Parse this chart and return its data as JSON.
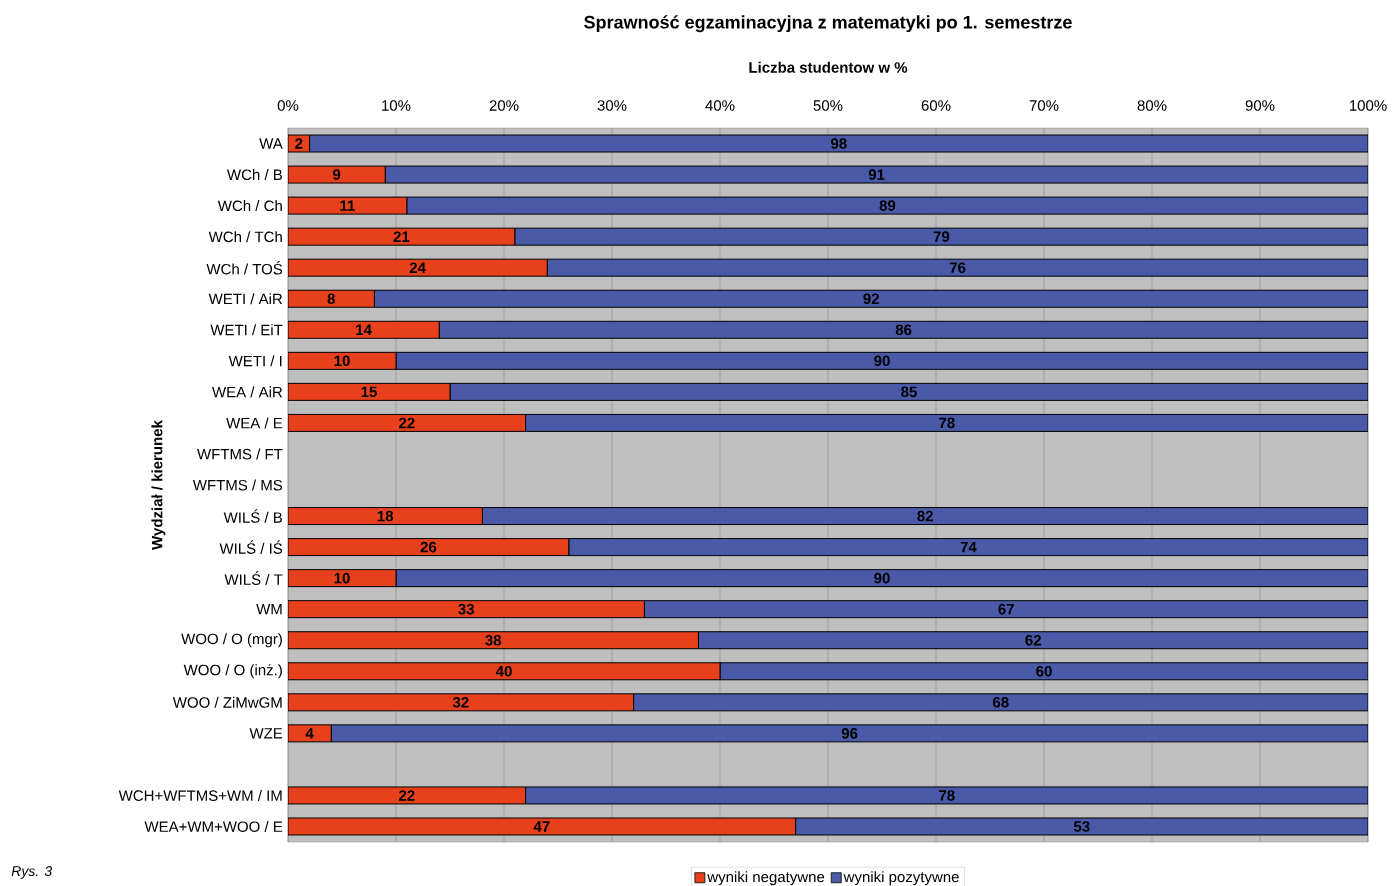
{
  "chart_data": {
    "type": "bar",
    "orientation": "horizontal",
    "stacked": true,
    "title": "Sprawność egzaminacyjna z matematyki po 1. semestrze",
    "xlabel": "Liczba studentow w %",
    "ylabel": "Wydział / kierunek",
    "categories": [
      "WA",
      "WCh / B",
      "WCh / Ch",
      "WCh / TCh",
      "WCh / TOŚ",
      "WETI / AiR",
      "WETI / EiT",
      "WETI / I",
      "WEA / AiR",
      "WEA / E",
      "WFTMS / FT",
      "WFTMS / MS",
      "WILŚ / B",
      "WILŚ / IŚ",
      "WILŚ / T",
      "WM",
      "WOO / O (mgr)",
      "WOO / O (inż.)",
      "WOO / ZiMwGM",
      "WZE",
      null,
      "WCH+WFTMS+WM / IM",
      "WEA+WM+WOO / E"
    ],
    "series": [
      {
        "name": "wyniki negatywne",
        "color": "#e8401c",
        "values": [
          2,
          9,
          11,
          21,
          24,
          8,
          14,
          10,
          15,
          22,
          null,
          null,
          18,
          26,
          10,
          33,
          38,
          40,
          32,
          4,
          null,
          22,
          47
        ]
      },
      {
        "name": "wyniki pozytywne",
        "color": "#4a5aa8",
        "values": [
          98,
          91,
          89,
          79,
          76,
          92,
          86,
          90,
          85,
          78,
          null,
          null,
          82,
          74,
          90,
          67,
          62,
          60,
          68,
          96,
          null,
          78,
          53
        ]
      }
    ],
    "xlim": [
      0,
      100
    ],
    "xticks": [
      {
        "value": 0,
        "label": "0%"
      },
      {
        "value": 10,
        "label": "10%"
      },
      {
        "value": 20,
        "label": "20%"
      },
      {
        "value": 30,
        "label": "30%"
      },
      {
        "value": 40,
        "label": "40%"
      },
      {
        "value": 50,
        "label": "50%"
      },
      {
        "value": 60,
        "label": "60%"
      },
      {
        "value": 70,
        "label": "70%"
      },
      {
        "value": 80,
        "label": "80%"
      },
      {
        "value": 90,
        "label": "90%"
      },
      {
        "value": 100,
        "label": "100%"
      }
    ],
    "grid": "x",
    "legend": "bottom",
    "data_labels": true,
    "annotations": [
      "Rys. 3"
    ]
  }
}
